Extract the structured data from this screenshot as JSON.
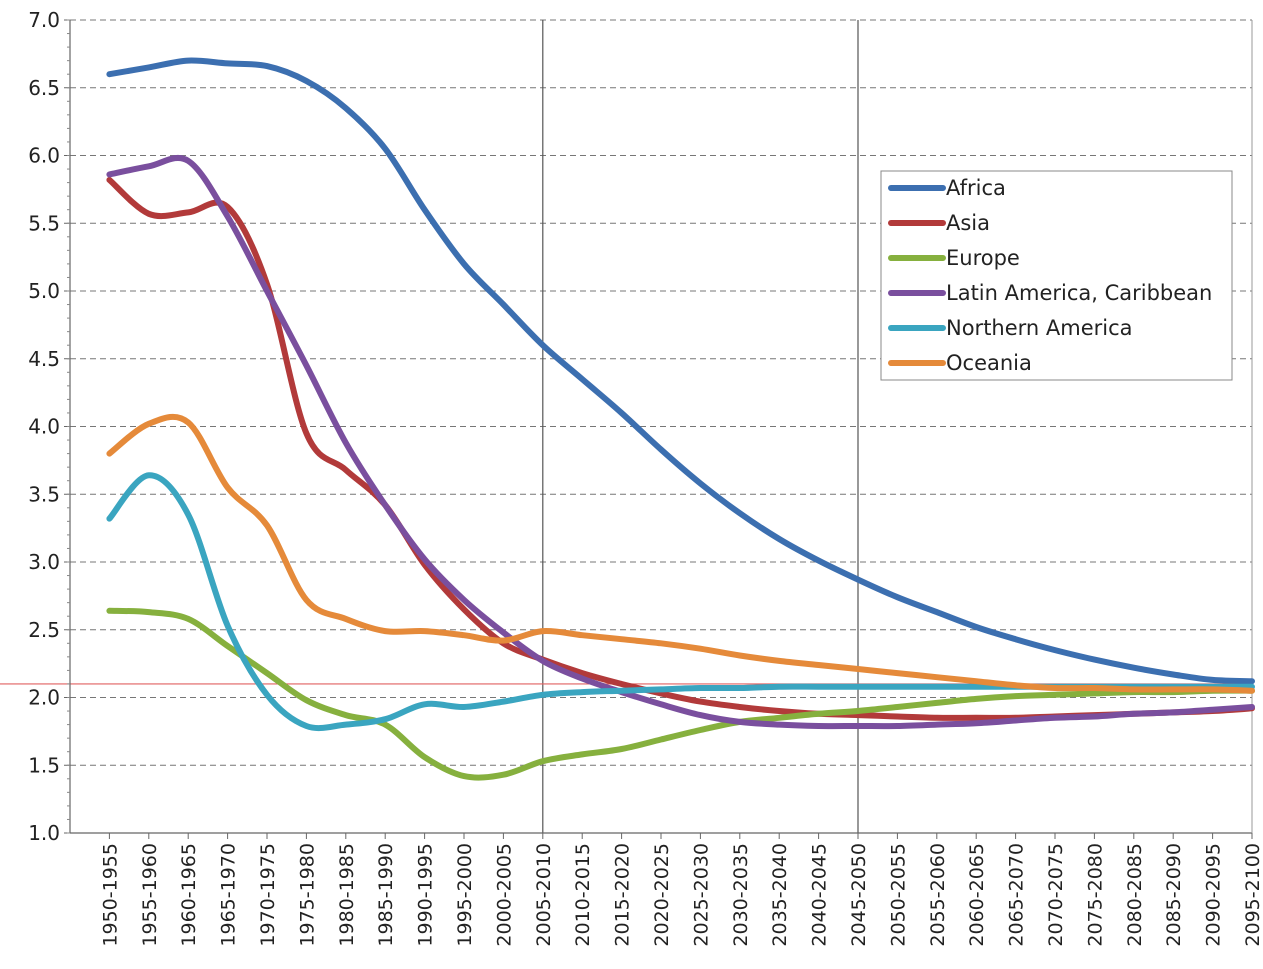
{
  "chart_data": {
    "type": "line",
    "title": "",
    "xlabel": "",
    "ylabel": "",
    "ylim": [
      1.0,
      7.0
    ],
    "y_ticks": [
      "1.0",
      "1.5",
      "2.0",
      "2.5",
      "3.0",
      "3.5",
      "4.0",
      "4.5",
      "5.0",
      "5.5",
      "6.0",
      "6.5",
      "7.0"
    ],
    "grid": "horizontal dashed",
    "legend_position": "right",
    "categories": [
      "1950-1955",
      "1955-1960",
      "1960-1965",
      "1965-1970",
      "1970-1975",
      "1975-1980",
      "1980-1985",
      "1985-1990",
      "1990-1995",
      "1995-2000",
      "2000-2005",
      "2005-2010",
      "2010-2015",
      "2015-2020",
      "2020-2025",
      "2025-2030",
      "2030-2035",
      "2035-2040",
      "2040-2045",
      "2045-2050",
      "2050-2055",
      "2055-2060",
      "2060-2065",
      "2065-2070",
      "2070-2075",
      "2075-2080",
      "2080-2085",
      "2085-2090",
      "2090-2095",
      "2095-2100"
    ],
    "vertical_markers": [
      "2005-2010",
      "2045-2050"
    ],
    "reference_line": {
      "y": 2.1,
      "color": "#e06060"
    },
    "series": [
      {
        "name": "Africa",
        "color": "#3c6fb0",
        "values": [
          6.6,
          6.65,
          6.7,
          6.68,
          6.66,
          6.55,
          6.35,
          6.05,
          5.6,
          5.2,
          4.9,
          4.6,
          4.35,
          4.1,
          3.83,
          3.58,
          3.36,
          3.17,
          3.01,
          2.87,
          2.74,
          2.63,
          2.52,
          2.43,
          2.35,
          2.28,
          2.22,
          2.17,
          2.13,
          2.12
        ]
      },
      {
        "name": "Asia",
        "color": "#b23a3a",
        "values": [
          5.82,
          5.57,
          5.58,
          5.62,
          5.05,
          3.95,
          3.68,
          3.42,
          2.98,
          2.65,
          2.4,
          2.28,
          2.18,
          2.1,
          2.03,
          1.97,
          1.93,
          1.9,
          1.88,
          1.87,
          1.86,
          1.85,
          1.85,
          1.85,
          1.86,
          1.87,
          1.88,
          1.89,
          1.9,
          1.92
        ]
      },
      {
        "name": "Europe",
        "color": "#86b03e",
        "values": [
          2.64,
          2.63,
          2.58,
          2.38,
          2.18,
          1.98,
          1.87,
          1.8,
          1.56,
          1.42,
          1.43,
          1.53,
          1.58,
          1.62,
          1.69,
          1.76,
          1.82,
          1.85,
          1.88,
          1.9,
          1.93,
          1.96,
          1.99,
          2.01,
          2.02,
          2.03,
          2.04,
          2.04,
          2.05,
          2.05
        ]
      },
      {
        "name": "Latin America, Caribbean",
        "color": "#7a4f9e",
        "values": [
          5.86,
          5.92,
          5.96,
          5.55,
          5.0,
          4.45,
          3.88,
          3.42,
          3.02,
          2.72,
          2.48,
          2.27,
          2.14,
          2.04,
          1.95,
          1.87,
          1.82,
          1.8,
          1.79,
          1.79,
          1.79,
          1.8,
          1.81,
          1.83,
          1.85,
          1.86,
          1.88,
          1.89,
          1.91,
          1.93
        ]
      },
      {
        "name": "Northern America",
        "color": "#3aa5c0",
        "values": [
          3.32,
          3.64,
          3.35,
          2.53,
          2.02,
          1.79,
          1.8,
          1.84,
          1.95,
          1.93,
          1.97,
          2.02,
          2.04,
          2.05,
          2.06,
          2.07,
          2.07,
          2.08,
          2.08,
          2.08,
          2.08,
          2.08,
          2.08,
          2.08,
          2.08,
          2.08,
          2.08,
          2.08,
          2.08,
          2.08
        ]
      },
      {
        "name": "Oceania",
        "color": "#e58a3a",
        "values": [
          3.8,
          4.02,
          4.03,
          3.55,
          3.27,
          2.72,
          2.58,
          2.49,
          2.49,
          2.46,
          2.42,
          2.49,
          2.46,
          2.43,
          2.4,
          2.36,
          2.31,
          2.27,
          2.24,
          2.21,
          2.18,
          2.15,
          2.12,
          2.09,
          2.07,
          2.07,
          2.06,
          2.06,
          2.06,
          2.05
        ]
      }
    ]
  }
}
